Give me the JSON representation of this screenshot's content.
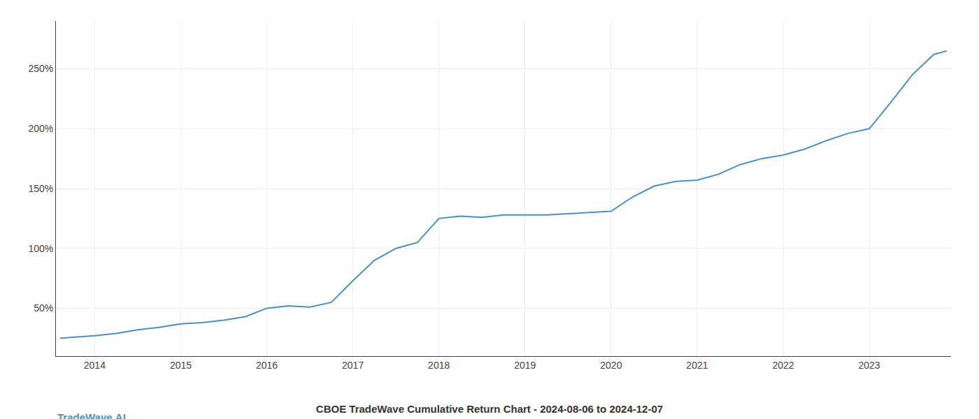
{
  "chart_data": {
    "type": "line",
    "title": "CBOE TradeWave Cumulative Return Chart - 2024-08-06 to 2024-12-07",
    "annotations": [
      "TradeWave.AI"
    ],
    "x": [
      2013.6,
      2014.0,
      2014.25,
      2014.5,
      2014.75,
      2015.0,
      2015.25,
      2015.5,
      2015.75,
      2016.0,
      2016.25,
      2016.5,
      2016.75,
      2017.0,
      2017.25,
      2017.5,
      2017.75,
      2018.0,
      2018.25,
      2018.5,
      2018.75,
      2019.0,
      2019.25,
      2019.5,
      2019.75,
      2020.0,
      2020.25,
      2020.5,
      2020.75,
      2021.0,
      2021.25,
      2021.5,
      2021.75,
      2022.0,
      2022.25,
      2022.5,
      2022.75,
      2023.0,
      2023.25,
      2023.5,
      2023.75,
      2023.9
    ],
    "values": [
      25,
      27,
      29,
      32,
      34,
      37,
      38,
      40,
      43,
      50,
      52,
      51,
      55,
      73,
      90,
      100,
      105,
      125,
      127,
      126,
      128,
      128,
      128,
      129,
      130,
      131,
      143,
      152,
      156,
      157,
      162,
      170,
      175,
      178,
      183,
      190,
      196,
      200,
      222,
      245,
      262,
      265
    ],
    "color": "#4a90c4",
    "xlim": [
      2013.55,
      2023.95
    ],
    "ylim": [
      10,
      290
    ],
    "xticks": [
      2014,
      2015,
      2016,
      2017,
      2018,
      2019,
      2020,
      2021,
      2022,
      2023
    ],
    "yticks": [
      {
        "value": 50,
        "label": "50%"
      },
      {
        "value": 100,
        "label": "100%"
      },
      {
        "value": 150,
        "label": "150%"
      },
      {
        "value": 200,
        "label": "200%"
      },
      {
        "value": 250,
        "label": "250%"
      }
    ],
    "grid": true
  }
}
